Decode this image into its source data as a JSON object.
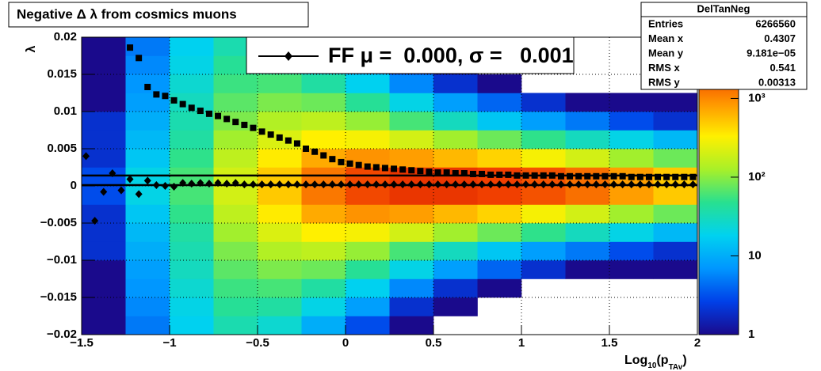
{
  "chart_data": {
    "type": "heatmap",
    "title": "Negative Δ λ from cosmics muons",
    "y_label": "λ",
    "x_label_parts": [
      "Log",
      "10",
      "(p",
      "TAv",
      ")"
    ],
    "xlim": [
      -1.5,
      2
    ],
    "ylim": [
      -0.02,
      0.02
    ],
    "xticks": [
      {
        "value": -1.5,
        "label": "−1.5"
      },
      {
        "value": -1,
        "label": "−1"
      },
      {
        "value": -0.5,
        "label": "−0.5"
      },
      0,
      0.5,
      1,
      1.5,
      2
    ],
    "yticks": [
      {
        "value": -0.02,
        "label": "−0.02"
      },
      {
        "value": -0.015,
        "label": "−0.015"
      },
      {
        "value": -0.01,
        "label": "−0.01"
      },
      {
        "value": -0.005,
        "label": "−0.005"
      },
      0,
      0.005,
      0.01,
      0.015,
      0.02
    ],
    "grid": true,
    "zlim": [
      1,
      6000
    ],
    "zscale": "log",
    "zticks": [
      1,
      10,
      {
        "value": 100,
        "label": "10²"
      },
      {
        "value": 1000,
        "label": "10³"
      }
    ],
    "palette": [
      "#1a0a8c",
      "#0040e8",
      "#0096ff",
      "#00d2f0",
      "#28e090",
      "#a8f028",
      "#fff000",
      "#ff9600",
      "#f03c00",
      "#b40000"
    ],
    "xbins": [
      -1.5,
      -1.25,
      -1,
      -0.75,
      -0.5,
      -0.25,
      0,
      0.25,
      0.5,
      0.75,
      1,
      1.25,
      1.5,
      1.75,
      2
    ],
    "ybins": [
      -0.02,
      -0.0175,
      -0.015,
      -0.0125,
      -0.01,
      -0.0075,
      -0.005,
      -0.0025,
      0,
      0.0025,
      0.005,
      0.0075,
      0.01,
      0.0125,
      0.015,
      0.0175,
      0.02
    ],
    "z": [
      [
        1,
        1,
        1,
        1,
        2,
        2,
        2,
        3,
        3,
        2,
        2,
        2,
        1,
        1,
        1,
        1
      ],
      [
        5,
        6,
        7,
        8,
        10,
        12,
        15,
        20,
        20,
        15,
        12,
        10,
        8,
        7,
        6,
        5
      ],
      [
        18,
        20,
        25,
        30,
        35,
        40,
        50,
        60,
        60,
        50,
        40,
        35,
        30,
        25,
        20,
        18
      ],
      [
        35,
        45,
        55,
        70,
        90,
        120,
        160,
        200,
        200,
        160,
        120,
        90,
        70,
        55,
        45,
        35
      ],
      [
        25,
        40,
        60,
        90,
        140,
        220,
        350,
        500,
        500,
        350,
        220,
        140,
        90,
        60,
        40,
        25
      ],
      [
        10,
        20,
        40,
        80,
        160,
        330,
        700,
        1200,
        1200,
        700,
        330,
        160,
        80,
        40,
        20,
        10
      ],
      [
        3,
        8,
        18,
        45,
        110,
        300,
        900,
        2000,
        2000,
        900,
        300,
        110,
        45,
        18,
        8,
        3
      ],
      [
        1,
        2,
        6,
        20,
        60,
        200,
        800,
        2500,
        2500,
        800,
        200,
        60,
        20,
        6,
        2,
        1
      ],
      [
        0,
        1,
        2,
        8,
        30,
        120,
        600,
        2500,
        2500,
        600,
        120,
        30,
        8,
        2,
        1,
        0
      ],
      [
        0,
        0,
        1,
        4,
        15,
        80,
        450,
        2200,
        2200,
        450,
        80,
        15,
        4,
        1,
        0,
        0
      ],
      [
        0,
        0,
        0,
        2,
        8,
        50,
        300,
        1800,
        1800,
        300,
        50,
        8,
        2,
        0,
        0,
        0
      ],
      [
        0,
        0,
        0,
        1,
        5,
        30,
        200,
        1300,
        1300,
        200,
        30,
        5,
        1,
        0,
        0,
        0
      ],
      [
        0,
        0,
        0,
        1,
        3,
        20,
        120,
        800,
        800,
        120,
        20,
        3,
        1,
        0,
        0,
        0
      ],
      [
        0,
        0,
        0,
        1,
        2,
        12,
        80,
        500,
        500,
        80,
        12,
        2,
        1,
        0,
        0,
        0
      ]
    ],
    "series": [
      {
        "marker": "square",
        "color": "#000000",
        "x": [
          -1.225,
          -1.175,
          -1.125,
          -1.075,
          -1.025,
          -0.975,
          -0.925,
          -0.875,
          -0.825,
          -0.775,
          -0.725,
          -0.675,
          -0.625,
          -0.575,
          -0.525,
          -0.475,
          -0.425,
          -0.375,
          -0.325,
          -0.275,
          -0.225,
          -0.175,
          -0.125,
          -0.075,
          -0.025,
          0.025,
          0.075,
          0.125,
          0.175,
          0.225,
          0.275,
          0.325,
          0.375,
          0.425,
          0.475,
          0.525,
          0.575,
          0.625,
          0.675,
          0.725,
          0.775,
          0.825,
          0.875,
          0.925,
          0.975,
          1.025,
          1.075,
          1.125,
          1.175,
          1.225,
          1.275,
          1.325,
          1.375,
          1.425,
          1.475,
          1.525,
          1.575,
          1.625,
          1.675,
          1.725,
          1.775,
          1.825,
          1.875,
          1.925,
          1.975
        ],
        "values": [
          0.0186,
          0.0172,
          0.0133,
          0.0123,
          0.0121,
          0.0115,
          0.011,
          0.0105,
          0.0101,
          0.0097,
          0.0094,
          0.009,
          0.0086,
          0.0082,
          0.0078,
          0.0073,
          0.0069,
          0.0065,
          0.0061,
          0.0057,
          0.005,
          0.0046,
          0.0041,
          0.0036,
          0.0032,
          0.003,
          0.0028,
          0.0026,
          0.0025,
          0.0024,
          0.0023,
          0.0022,
          0.0021,
          0.002,
          0.0019,
          0.0018,
          0.0018,
          0.0017,
          0.0017,
          0.0016,
          0.0016,
          0.0015,
          0.0015,
          0.0015,
          0.0014,
          0.0014,
          0.0014,
          0.0014,
          0.0014,
          0.0013,
          0.0013,
          0.0013,
          0.0013,
          0.0013,
          0.0013,
          0.0013,
          0.0013,
          0.0012,
          0.0012,
          0.0012,
          0.0012,
          0.0012,
          0.0012,
          0.0012,
          0.0012
        ]
      },
      {
        "name": "FF μ =  0.000, σ =   0.001",
        "marker": "diamond",
        "color": "#000000",
        "x": [
          -1.475,
          -1.425,
          -1.375,
          -1.325,
          -1.275,
          -1.225,
          -1.175,
          -1.125,
          -1.075,
          -1.025,
          -0.975,
          -0.925,
          -0.875,
          -0.825,
          -0.775,
          -0.725,
          -0.675,
          -0.625,
          -0.575,
          -0.525,
          -0.475,
          -0.425,
          -0.375,
          -0.325,
          -0.275,
          -0.225,
          -0.175,
          -0.125,
          -0.075,
          -0.025,
          0.025,
          0.075,
          0.125,
          0.175,
          0.225,
          0.275,
          0.325,
          0.375,
          0.425,
          0.475,
          0.525,
          0.575,
          0.625,
          0.675,
          0.725,
          0.775,
          0.825,
          0.875,
          0.925,
          0.975,
          1.025,
          1.075,
          1.125,
          1.175,
          1.225,
          1.275,
          1.325,
          1.375,
          1.425,
          1.475,
          1.525,
          1.575,
          1.625,
          1.675,
          1.725,
          1.775,
          1.825,
          1.875,
          1.925,
          1.975
        ],
        "values": [
          0.004,
          -0.0047,
          -0.0008,
          0.0017,
          -0.0006,
          0.0009,
          -0.0011,
          0.0007,
          0.0001,
          0,
          -0.0001,
          0.0004,
          0.0003,
          0.0004,
          0.0003,
          0.0004,
          0.0003,
          0.0004,
          0.0002,
          0.0002,
          0.0002,
          0.0002,
          0.0002,
          0.0002,
          0.0002,
          0.0002,
          0.0002,
          0.0002,
          0.0002,
          0.0002,
          0.0002,
          0.0002,
          0.0002,
          0.0002,
          0.0002,
          0.0002,
          0.0002,
          0.0002,
          0.0002,
          0.0002,
          0.0002,
          0.0002,
          0.0002,
          0.0002,
          0.0002,
          0.0002,
          0.0002,
          0.0002,
          0.0002,
          0.0002,
          0.0002,
          0.0002,
          0.0002,
          0.0002,
          0.0002,
          0.0002,
          0.0002,
          0.0002,
          0.0002,
          0.0002,
          0.0002,
          0.0002,
          0.0002,
          0.0002,
          0.0002,
          0.0002,
          0.0002,
          0.0002,
          0.0002,
          0.0002
        ]
      }
    ],
    "hlines": [
      0.0014,
      0.0001
    ],
    "stats": {
      "title": "DelTanNeg",
      "rows": [
        [
          "Entries",
          "6266560"
        ],
        [
          "Mean x",
          "0.4307"
        ],
        [
          "Mean y",
          "9.181e−05"
        ],
        [
          "RMS x",
          "0.541"
        ],
        [
          "RMS y",
          "0.00313"
        ]
      ]
    }
  }
}
